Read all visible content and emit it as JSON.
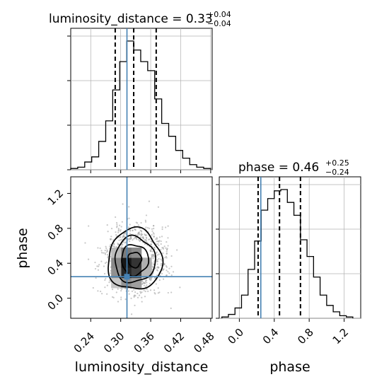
{
  "chart_data": {
    "type": "corner",
    "parameters": [
      "luminosity_distance",
      "phase"
    ],
    "titles": {
      "luminosity_distance": {
        "name": "luminosity_distance",
        "median": "0.33",
        "plus": "+0.04",
        "minus": "−0.04"
      },
      "phase": {
        "name": "phase",
        "median": "0.46",
        "plus": "+0.25",
        "minus": "−0.24"
      }
    },
    "axis_labels": {
      "x_left": "luminosity_distance",
      "x_right": "phase",
      "y_left": "phase"
    },
    "ranges": {
      "luminosity_distance": [
        0.2,
        0.483
      ],
      "phase": [
        -0.23,
        1.39
      ]
    },
    "ticks": {
      "luminosity_distance": [
        "0.24",
        "0.30",
        "0.36",
        "0.42",
        "0.48"
      ],
      "phase": [
        "0.0",
        "0.4",
        "0.8",
        "1.2"
      ]
    },
    "truth": {
      "luminosity_distance": 0.3125,
      "phase": 0.246
    },
    "quantiles": {
      "luminosity_distance": [
        0.289,
        0.326,
        0.371
      ],
      "phase": [
        0.215,
        0.46,
        0.7
      ]
    },
    "hist_luminosity_distance": {
      "bin_edges": [
        0.2,
        0.214,
        0.228,
        0.242,
        0.256,
        0.27,
        0.284,
        0.298,
        0.312,
        0.326,
        0.34,
        0.354,
        0.368,
        0.382,
        0.396,
        0.41,
        0.424,
        0.438,
        0.452,
        0.466,
        0.48
      ],
      "counts": [
        0.01,
        0.02,
        0.06,
        0.1,
        0.22,
        0.38,
        0.62,
        0.84,
        1.0,
        0.93,
        0.84,
        0.77,
        0.55,
        0.36,
        0.26,
        0.15,
        0.09,
        0.04,
        0.02,
        0.01
      ]
    },
    "hist_phase": {
      "bin_edges": [
        -0.2,
        -0.125,
        -0.05,
        0.025,
        0.1,
        0.175,
        0.25,
        0.325,
        0.4,
        0.475,
        0.55,
        0.625,
        0.7,
        0.775,
        0.85,
        0.925,
        1.0,
        1.075,
        1.15,
        1.225,
        1.3
      ],
      "counts": [
        0.01,
        0.03,
        0.08,
        0.18,
        0.38,
        0.6,
        0.84,
        0.93,
        0.99,
        1.0,
        0.9,
        0.8,
        0.61,
        0.48,
        0.32,
        0.18,
        0.1,
        0.05,
        0.02,
        0.01
      ]
    },
    "joint": {
      "center": [
        0.328,
        0.44
      ],
      "sigma": [
        0.027,
        0.175
      ],
      "contour_levels": [
        0.5,
        1.0,
        1.5,
        2.0
      ],
      "peak": [
        0.318,
        0.36
      ]
    },
    "colors": {
      "line": "#000000",
      "truth": "#4682b4",
      "grid": "#b0b0b0"
    }
  }
}
